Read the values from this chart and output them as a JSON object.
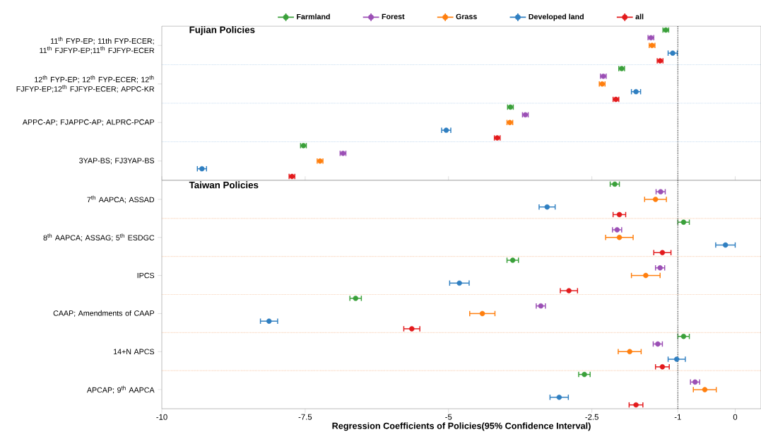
{
  "chart_data": [
    {
      "type": "scatter",
      "orientation": "horizontal",
      "title": "Fujian Policies",
      "categories": [
        "11$^{th}$ FYP-EP; 11th FYP-ECER; 11$^{th}$ FJFYP-EP;11$^{th}$ FJFYP-ECER",
        "12$^{th}$ FYP-EP; 12$^{th}$ FYP-ECER; 12$^{th}$ FJFYP-EP;12$^{th}$ FJFYP-ECER; APPC-KR",
        "APPC-AP; FJAPPC-AP; ALPRC-PCAP",
        "3YAP-BS; FJ3YAP-BS"
      ],
      "xlim": [
        -10,
        0.45
      ],
      "tick_labels": "y",
      "grid": "y",
      "legend": "top",
      "marker": "circle",
      "ref_lines": [
        {
          "axis": "x",
          "value": -1,
          "line_style": "dotted",
          "color": "#333333"
        }
      ],
      "series": [
        {
          "name": "Farmland",
          "color": "#3aa03a",
          "values": [
            -1.21,
            -1.98,
            -3.92,
            -7.53
          ],
          "errors": [
            0.05,
            0.05,
            0.05,
            0.05
          ]
        },
        {
          "name": "Forest",
          "color": "#9b4fb5",
          "values": [
            -1.47,
            -2.3,
            -3.66,
            -6.84
          ],
          "errors": [
            0.05,
            0.05,
            0.05,
            0.05
          ]
        },
        {
          "name": "Grass",
          "color": "#ff7f0e",
          "values": [
            -1.45,
            -2.32,
            -3.93,
            -7.24
          ],
          "errors": [
            0.05,
            0.05,
            0.05,
            0.05
          ]
        },
        {
          "name": "Developed land",
          "color": "#2f7fc1",
          "values": [
            -1.09,
            -1.73,
            -5.04,
            -9.3
          ],
          "errors": [
            0.08,
            0.08,
            0.08,
            0.08
          ]
        },
        {
          "name": "all",
          "color": "#e31a1c",
          "values": [
            -1.31,
            -2.08,
            -4.15,
            -7.73
          ],
          "errors": [
            0.05,
            0.05,
            0.05,
            0.05
          ]
        }
      ]
    },
    {
      "type": "scatter",
      "orientation": "horizontal",
      "title": "Taiwan Policies",
      "xlabel": "Regression Coefficients of Policies(95% Confidence Interval)",
      "categories": [
        "7$^{th}$ AAPCA; ASSAD",
        "8$^{th}$ AAPCA; ASSAG; 5$^{th}$ ESDGC",
        "IPCS",
        "CAAP; Amendments of CAAP",
        "14+N APCS",
        "APCAP; 9$^{th}$ AAPCA"
      ],
      "xlim": [
        -10,
        0.45
      ],
      "xticks": [
        -10,
        -7.5,
        -5,
        -2.5,
        -1,
        0
      ],
      "grid": "y",
      "marker": "circle",
      "ref_lines": [
        {
          "axis": "x",
          "value": -1,
          "line_style": "dotted",
          "color": "#333333"
        }
      ],
      "series": [
        {
          "color": "#3aa03a",
          "values": [
            -2.1,
            -0.9,
            -3.88,
            -6.62,
            -0.9,
            -2.63
          ],
          "errors": [
            0.08,
            0.1,
            0.1,
            0.1,
            0.1,
            0.1
          ]
        },
        {
          "color": "#9b4fb5",
          "values": [
            -1.3,
            -2.06,
            -1.31,
            -3.39,
            -1.35,
            -0.7
          ],
          "errors": [
            0.08,
            0.08,
            0.08,
            0.08,
            0.08,
            0.08
          ]
        },
        {
          "color": "#ff7f0e",
          "values": [
            -1.39,
            -2.02,
            -1.56,
            -4.41,
            -1.84,
            -0.53
          ],
          "errors": [
            0.19,
            0.24,
            0.25,
            0.22,
            0.2,
            0.2
          ]
        },
        {
          "color": "#2f7fc1",
          "values": [
            -3.28,
            -0.17,
            -4.81,
            -8.13,
            -1.02,
            -3.07
          ],
          "errors": [
            0.14,
            0.17,
            0.17,
            0.15,
            0.15,
            0.16
          ]
        },
        {
          "color": "#e31a1c",
          "values": [
            -2.02,
            -1.27,
            -2.9,
            -5.64,
            -1.27,
            -1.73
          ],
          "errors": [
            0.11,
            0.15,
            0.15,
            0.14,
            0.12,
            0.12
          ]
        }
      ]
    }
  ]
}
